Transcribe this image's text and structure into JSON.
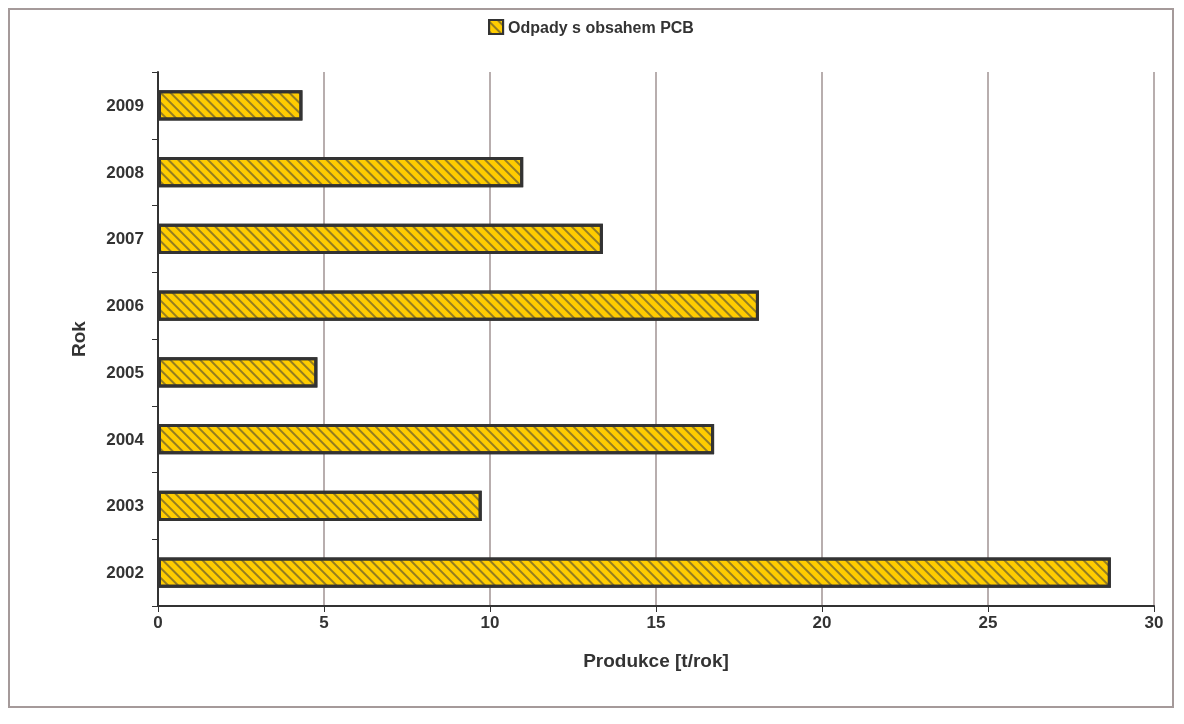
{
  "chart_data": {
    "type": "bar",
    "orientation": "horizontal",
    "xlabel": "Produkce [t/rok]",
    "ylabel": "Rok",
    "categories": [
      "2009",
      "2008",
      "2007",
      "2006",
      "2005",
      "2004",
      "2003",
      "2002"
    ],
    "series": [
      {
        "name": "Odpady s obsahem PCB",
        "color": "#ffcc00",
        "values": [
          4.35,
          11.0,
          13.4,
          18.1,
          4.8,
          16.75,
          9.75,
          28.7
        ]
      }
    ],
    "xlim": [
      0,
      30
    ],
    "xticks": [
      0,
      5,
      10,
      15,
      20,
      25,
      30
    ],
    "grid": "x",
    "legend": "top"
  }
}
